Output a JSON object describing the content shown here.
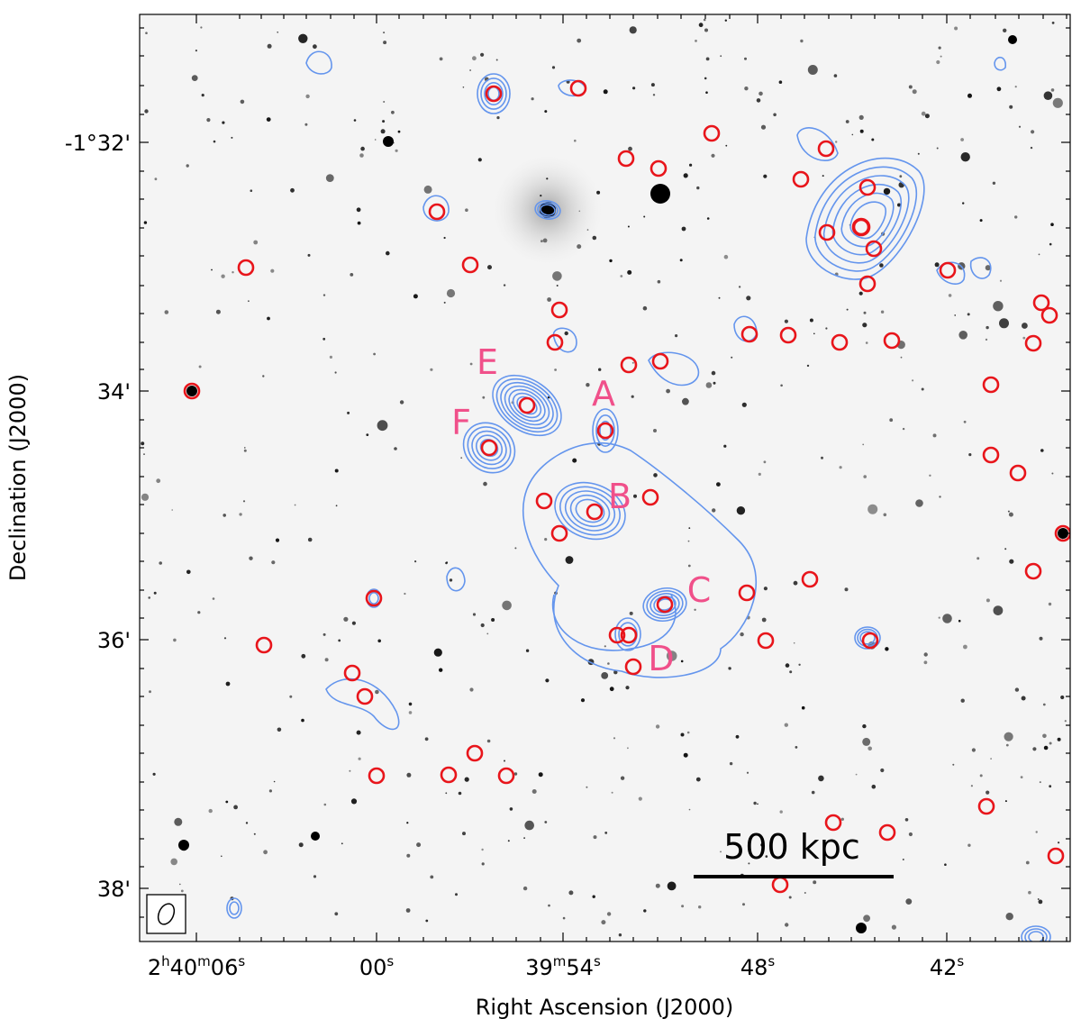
{
  "axes": {
    "xlabel": "Right Ascension (J2000)",
    "ylabel": "Declination (J2000)",
    "x_ticks": [
      {
        "h": "2",
        "hu": "h",
        "m": "40",
        "mu": "m",
        "s": "06",
        "su": "s"
      },
      {
        "s": "00",
        "su": "s"
      },
      {
        "m": "39",
        "mu": "m",
        "s": "54",
        "su": "s"
      },
      {
        "s": "48",
        "su": "s"
      },
      {
        "s": "42",
        "su": "s"
      }
    ],
    "y_ticks": [
      "-1°32'",
      "34'",
      "36'",
      "38'"
    ]
  },
  "scale_bar": {
    "label": "500 kpc"
  },
  "source_labels": [
    "A",
    "B",
    "C",
    "D",
    "E",
    "F"
  ],
  "colors": {
    "contour": "#6495ed",
    "marker": "#e8151b",
    "label": "#f0508a",
    "stars": "#111111"
  },
  "legend": {
    "beam": "beam-ellipse"
  }
}
